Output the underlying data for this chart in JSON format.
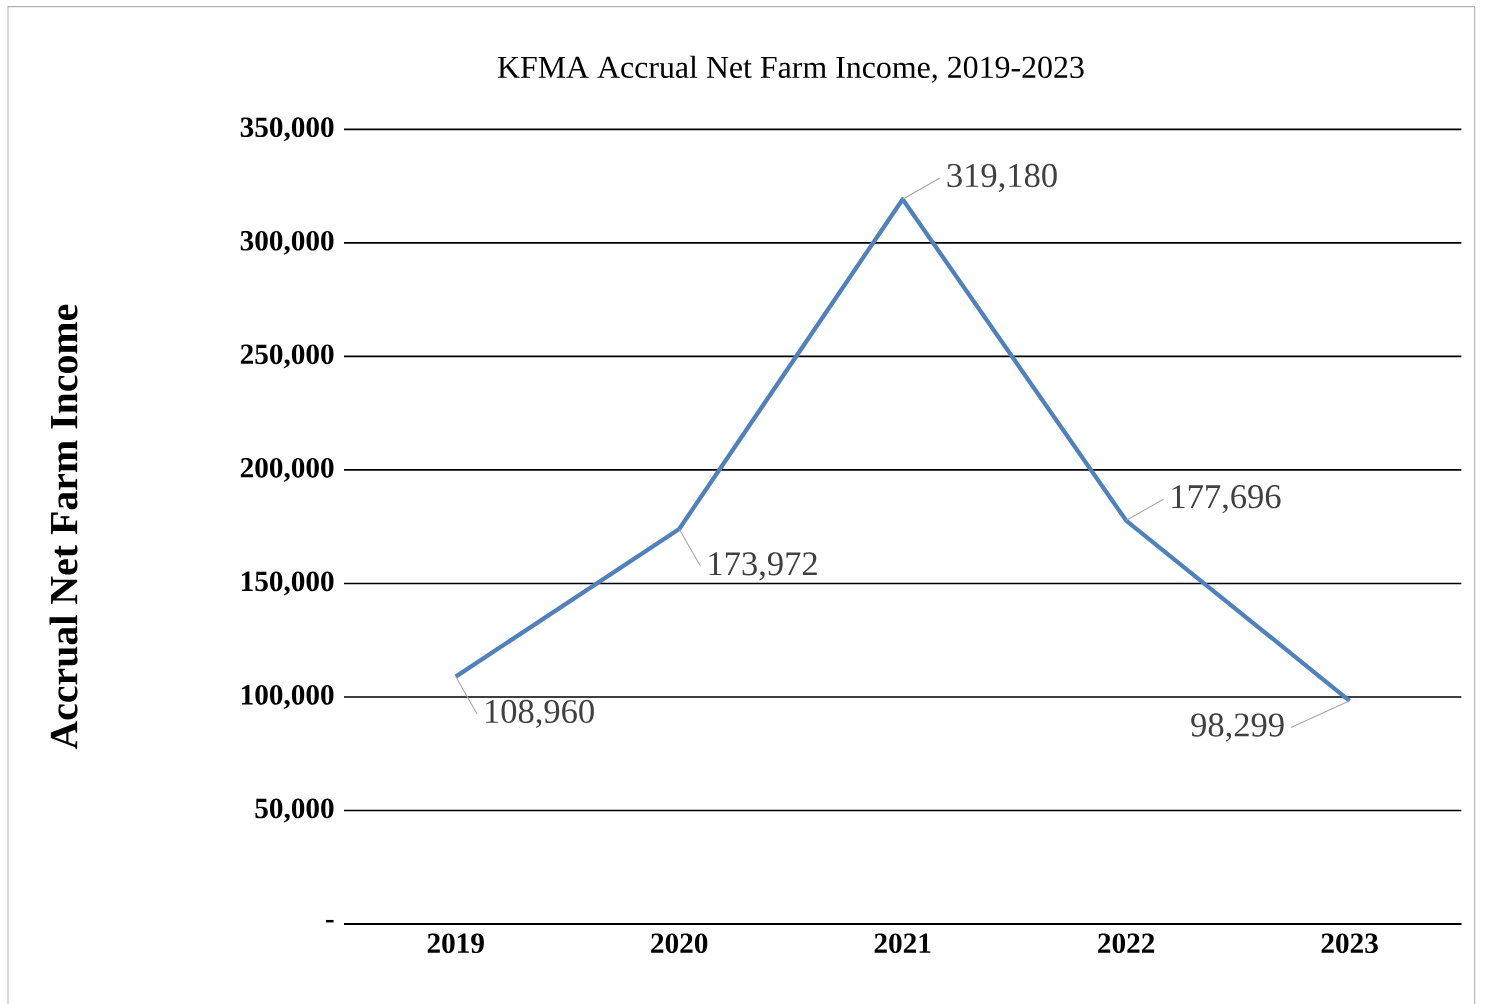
{
  "chart_data": {
    "type": "line",
    "title": "KFMA Accrual Net Farm Income, 2019-2023",
    "ylabel": "Accrual Net Farm Income",
    "categories": [
      "2019",
      "2020",
      "2021",
      "2022",
      "2023"
    ],
    "series": [
      {
        "color": "#4f81bd",
        "values": [
          108960,
          173972,
          319180,
          177696,
          98299
        ],
        "value_labels": [
          "108,960",
          "173,972",
          "319,180",
          "177,696",
          "98,299"
        ]
      }
    ],
    "ylim": [
      0,
      350000
    ],
    "yticks": [
      {
        "value": 0,
        "label": "-"
      },
      {
        "value": 50000,
        "label": "50,000"
      },
      {
        "value": 100000,
        "label": "100,000"
      },
      {
        "value": 150000,
        "label": "150,000"
      },
      {
        "value": 200000,
        "label": "200,000"
      },
      {
        "value": 250000,
        "label": "250,000"
      },
      {
        "value": 300000,
        "label": "300,000"
      },
      {
        "value": 350000,
        "label": "350,000"
      }
    ],
    "grid": "y",
    "marker": "none",
    "line_style": "solid"
  }
}
